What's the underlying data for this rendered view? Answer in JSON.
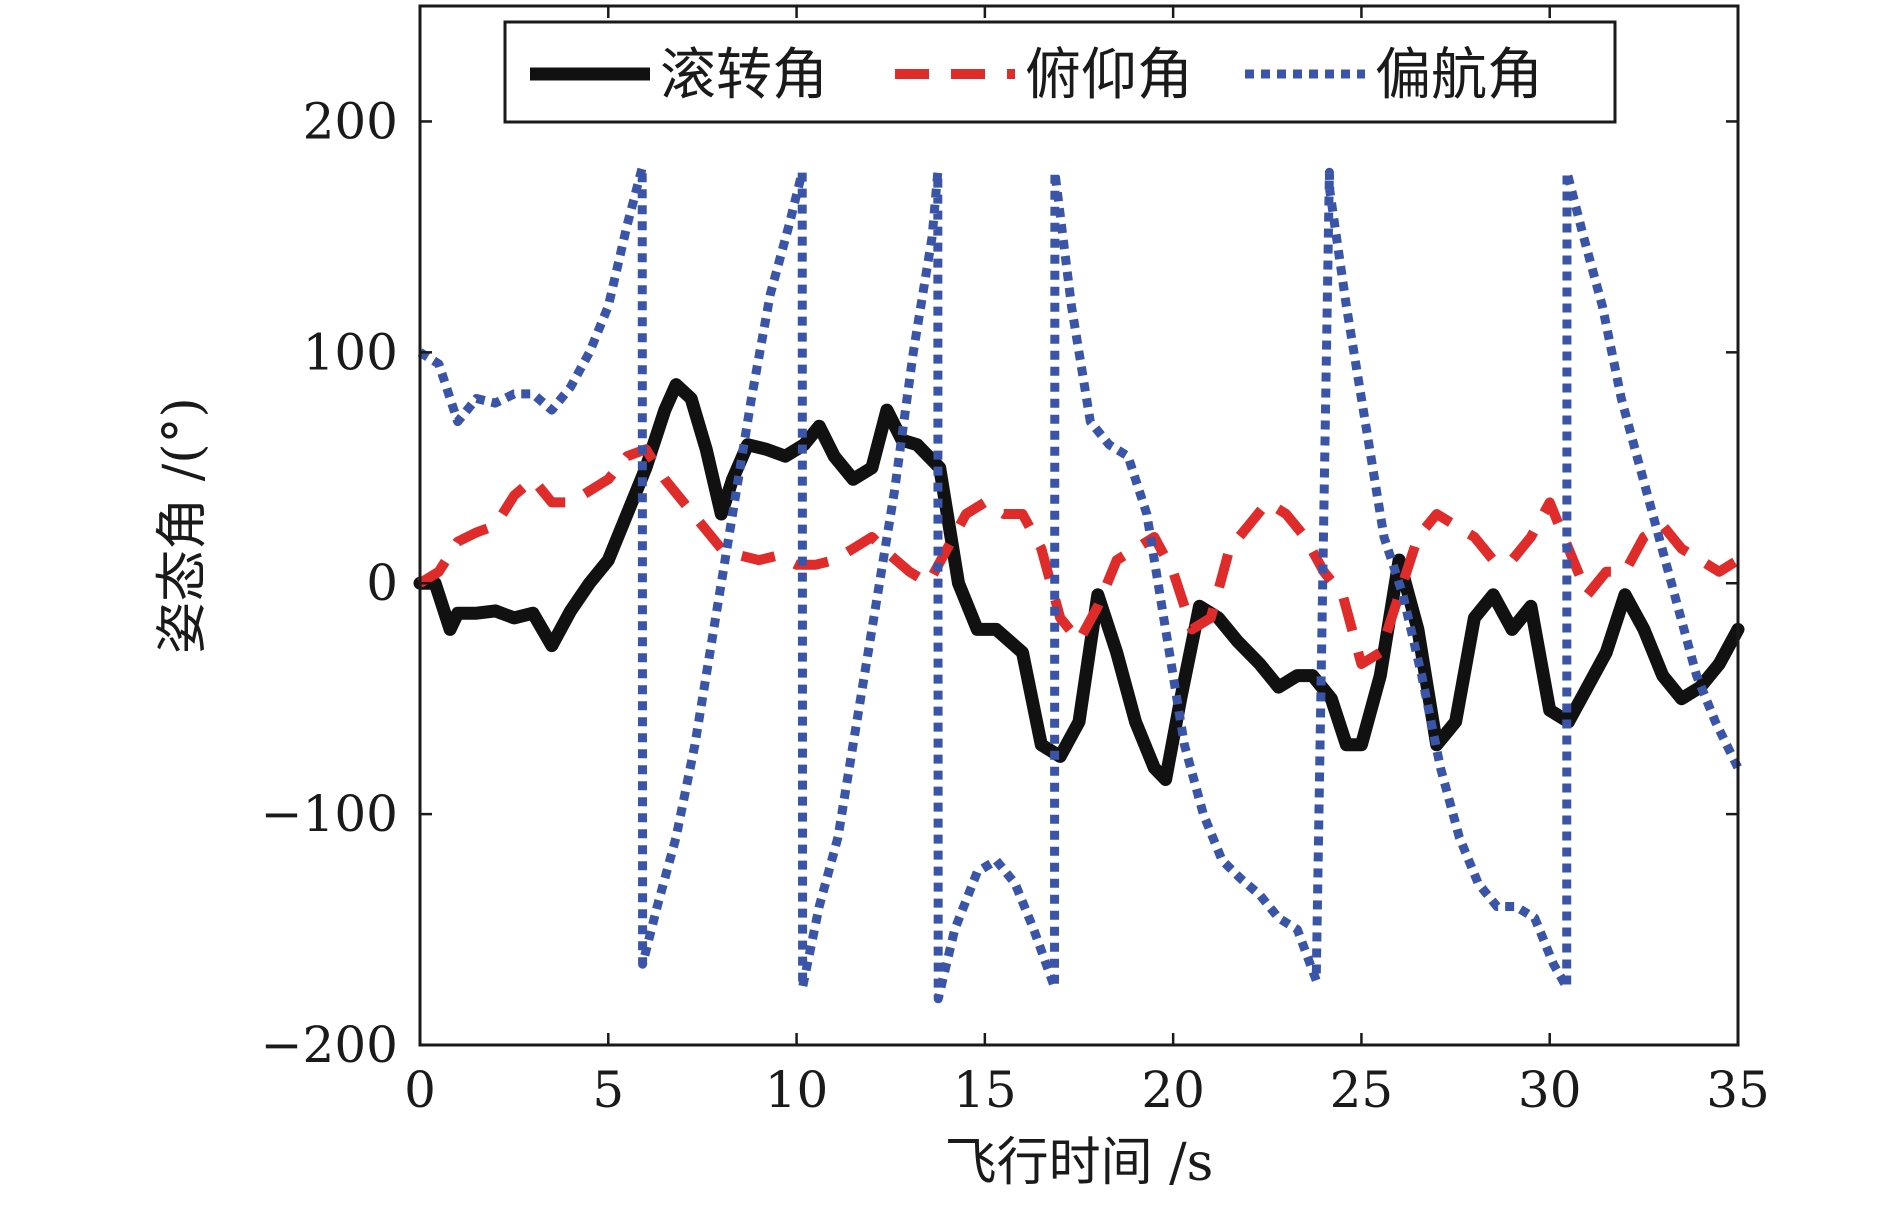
{
  "chart_data": {
    "type": "line",
    "title": "",
    "xlabel": "飞行时间 /s",
    "ylabel": "姿态角 /(°)",
    "xlim": [
      0,
      35
    ],
    "ylim": [
      -200,
      250
    ],
    "x_ticks": [
      0,
      5,
      10,
      15,
      20,
      25,
      30,
      35
    ],
    "y_ticks": [
      -200,
      -100,
      0,
      100,
      200
    ],
    "x_tick_labels": [
      "0",
      "5",
      "10",
      "15",
      "20",
      "25",
      "30",
      "35"
    ],
    "y_tick_labels": [
      "−200",
      "−100",
      "0",
      "100",
      "200"
    ],
    "grid": false,
    "legend_position": "top",
    "series": [
      {
        "name": "滚转角",
        "color": "#111111",
        "style": "solid",
        "x": [
          0,
          0.4,
          0.8,
          1.0,
          1.5,
          2.0,
          2.5,
          3.0,
          3.5,
          4.0,
          4.5,
          5.0,
          5.5,
          6.0,
          6.5,
          6.8,
          7.2,
          7.6,
          8.0,
          8.3,
          8.7,
          9.2,
          9.7,
          10.2,
          10.6,
          11.0,
          11.5,
          12.0,
          12.4,
          12.8,
          13.2,
          13.8,
          14.3,
          14.8,
          15.3,
          16.0,
          16.5,
          17.0,
          17.5,
          18.0,
          18.5,
          19.0,
          19.5,
          19.8,
          20.2,
          20.7,
          21.2,
          21.7,
          22.3,
          22.8,
          23.3,
          23.7,
          24.2,
          24.6,
          25.0,
          25.5,
          26.0,
          26.5,
          27.0,
          27.5,
          28.0,
          28.5,
          29.0,
          29.5,
          30.0,
          30.5,
          31.0,
          31.5,
          32.0,
          32.5,
          33.0,
          33.5,
          34.0,
          34.5,
          35.0
        ],
        "y": [
          0,
          0,
          -20,
          -13,
          -13,
          -12,
          -15,
          -13,
          -27,
          -12,
          0,
          10,
          30,
          50,
          75,
          86,
          80,
          58,
          30,
          45,
          60,
          58,
          55,
          60,
          68,
          55,
          45,
          50,
          75,
          62,
          60,
          50,
          0,
          -20,
          -20,
          -30,
          -70,
          -75,
          -60,
          -5,
          -30,
          -60,
          -80,
          -85,
          -50,
          -10,
          -15,
          -25,
          -35,
          -45,
          -40,
          -40,
          -50,
          -70,
          -70,
          -40,
          10,
          -20,
          -70,
          -60,
          -15,
          -5,
          -20,
          -10,
          -55,
          -60,
          -45,
          -30,
          -5,
          -20,
          -40,
          -50,
          -45,
          -35,
          -20
        ]
      },
      {
        "name": "俯仰角",
        "color": "#e02b2b",
        "style": "dashed",
        "x": [
          0,
          0.5,
          1.0,
          1.5,
          2.0,
          2.5,
          3.0,
          3.5,
          4.0,
          4.5,
          5.0,
          5.5,
          6.0,
          6.5,
          7.0,
          7.5,
          8.0,
          8.5,
          9.0,
          9.5,
          10.0,
          10.5,
          11.0,
          11.5,
          12.0,
          12.5,
          13.0,
          13.5,
          14.0,
          14.5,
          15.0,
          15.5,
          16.0,
          16.5,
          17.0,
          17.5,
          18.0,
          18.5,
          19.0,
          19.5,
          20.0,
          20.5,
          21.0,
          21.5,
          22.0,
          22.5,
          23.0,
          23.5,
          24.0,
          24.5,
          25.0,
          25.5,
          26.0,
          26.5,
          27.0,
          27.5,
          28.0,
          28.5,
          29.0,
          29.5,
          30.0,
          30.5,
          31.0,
          31.5,
          32.0,
          32.5,
          33.0,
          33.5,
          34.0,
          34.5,
          35.0
        ],
        "y": [
          0,
          5,
          18,
          22,
          25,
          38,
          45,
          35,
          35,
          40,
          45,
          55,
          58,
          45,
          35,
          25,
          15,
          12,
          10,
          12,
          8,
          8,
          10,
          15,
          20,
          12,
          5,
          0,
          15,
          30,
          35,
          30,
          30,
          15,
          -15,
          -25,
          -10,
          10,
          15,
          20,
          5,
          -20,
          -15,
          15,
          25,
          35,
          30,
          20,
          5,
          -5,
          -35,
          -30,
          -5,
          20,
          30,
          25,
          20,
          10,
          10,
          20,
          35,
          15,
          -5,
          5,
          5,
          20,
          25,
          15,
          10,
          5,
          10
        ]
      },
      {
        "name": "偏航角",
        "color": "#3a55a8",
        "style": "dotted",
        "x": [
          0,
          0.5,
          1.0,
          1.5,
          2.0,
          2.5,
          3.0,
          3.5,
          4.0,
          4.5,
          5.0,
          5.5,
          5.9,
          5.91,
          6.3,
          6.8,
          7.3,
          7.8,
          8.3,
          8.8,
          9.3,
          9.8,
          10.15,
          10.16,
          10.6,
          11.1,
          11.6,
          12.1,
          12.6,
          13.1,
          13.6,
          13.75,
          13.76,
          14.2,
          14.8,
          15.3,
          15.8,
          16.3,
          16.85,
          16.86,
          17.3,
          17.8,
          18.3,
          18.8,
          19.3,
          19.8,
          20.3,
          20.8,
          21.3,
          21.8,
          22.3,
          22.8,
          23.3,
          23.8,
          24.15,
          24.16,
          24.6,
          25.1,
          25.6,
          26.1,
          26.6,
          27.1,
          27.6,
          28.1,
          28.6,
          29.1,
          29.6,
          30.1,
          30.45,
          30.46,
          30.9,
          31.4,
          31.9,
          32.4,
          32.9,
          33.4,
          33.9,
          34.4,
          35.0
        ],
        "y": [
          100,
          95,
          70,
          80,
          78,
          82,
          82,
          75,
          85,
          100,
          120,
          155,
          180,
          -165,
          -140,
          -110,
          -70,
          -20,
          30,
          80,
          125,
          155,
          178,
          -175,
          -140,
          -110,
          -60,
          -10,
          40,
          100,
          150,
          178,
          -180,
          -150,
          -125,
          -120,
          -130,
          -150,
          -175,
          178,
          120,
          70,
          60,
          55,
          30,
          -20,
          -70,
          -100,
          -120,
          -128,
          -135,
          -145,
          -150,
          -172,
          178,
          170,
          120,
          70,
          20,
          -5,
          -40,
          -80,
          -110,
          -130,
          -140,
          -140,
          -145,
          -165,
          -175,
          178,
          150,
          120,
          80,
          50,
          20,
          -10,
          -40,
          -60,
          -80
        ]
      }
    ]
  }
}
